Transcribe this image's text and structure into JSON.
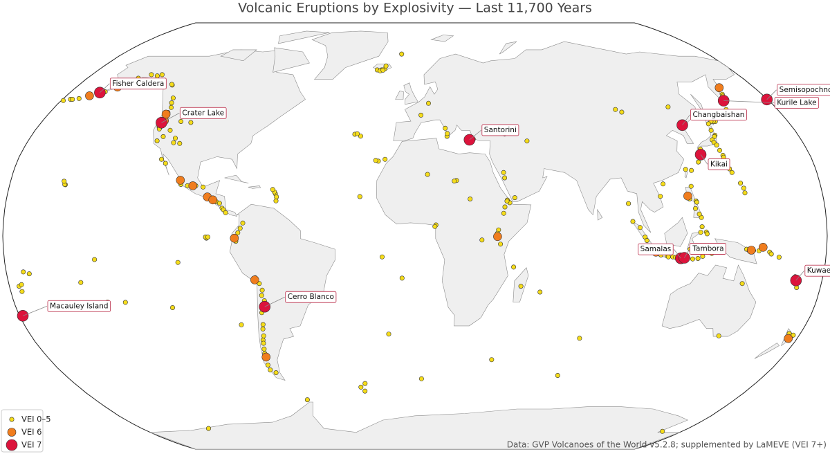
{
  "title": "Volcanic Eruptions by Explosivity — Last 11,700 Years",
  "source": "Data: GVP Volcanoes of the World v5.2.8; supplemented by LaMEVE (VEI 7+)",
  "map": {
    "series": [
      {
        "name": "VEI 0–5",
        "color": "#f5dc1a",
        "points": [
          [
            -176,
            52
          ],
          [
            -172,
            52.3
          ],
          [
            -168,
            53
          ],
          [
            -165,
            54.2
          ],
          [
            -162,
            55
          ],
          [
            -158,
            56.5
          ],
          [
            -155,
            58
          ],
          [
            -153,
            59.4
          ],
          [
            -152,
            60.5
          ],
          [
            178,
            51.8
          ],
          [
            -179,
            51.5
          ],
          [
            -175,
            52
          ],
          [
            -121.7,
            48.8
          ],
          [
            -121.8,
            46.85
          ],
          [
            -121.7,
            45.4
          ],
          [
            -121.8,
            44.1
          ],
          [
            -121.5,
            41.4
          ],
          [
            -122.2,
            41.4
          ],
          [
            -121.5,
            40.5
          ],
          [
            -147,
            62
          ],
          [
            -143,
            61.5
          ],
          [
            -141,
            62
          ],
          [
            -113,
            43.4
          ],
          [
            -116,
            40
          ],
          [
            -112,
            37
          ],
          [
            -118,
            37.6
          ],
          [
            -109,
            35
          ],
          [
            -112,
            35.3
          ],
          [
            -120,
            36
          ],
          [
            -108,
            43
          ],
          [
            -130,
            57.7
          ],
          [
            -123,
            50.6
          ],
          [
            -124,
            52.5
          ],
          [
            -130.6,
            58
          ],
          [
            -104,
            19.5
          ],
          [
            -101,
            19
          ],
          [
            -97.3,
            19
          ],
          [
            -94,
            18.5
          ],
          [
            -92,
            15.4
          ],
          [
            -91,
            14.5
          ],
          [
            -90,
            14
          ],
          [
            -88.5,
            13.5
          ],
          [
            -87.5,
            13
          ],
          [
            -86,
            12.4
          ],
          [
            -84.7,
            10.5
          ],
          [
            -84,
            9.9
          ],
          [
            -83,
            8.8
          ],
          [
            -112.7,
            27.5
          ],
          [
            -115,
            29
          ],
          [
            -61.7,
            16
          ],
          [
            -61.2,
            13.3
          ],
          [
            -62.2,
            16.7
          ],
          [
            -61.1,
            14.8
          ],
          [
            -63,
            17.6
          ],
          [
            -77.4,
            1.2
          ],
          [
            -78.4,
            -0.2
          ],
          [
            -78.4,
            -1.4
          ],
          [
            -78.3,
            -2
          ],
          [
            -75.3,
            4.9
          ],
          [
            -76.4,
            2.9
          ],
          [
            -71.4,
            -16.3
          ],
          [
            -70.6,
            -15.8
          ],
          [
            -69,
            -18
          ],
          [
            -68,
            -20.5
          ],
          [
            -68.5,
            -22.5
          ],
          [
            -67.5,
            -24.5
          ],
          [
            -68.5,
            -27
          ],
          [
            -69.5,
            -29
          ],
          [
            -70,
            -33.5
          ],
          [
            -70.5,
            -35.2
          ],
          [
            -71,
            -37.8
          ],
          [
            -71.8,
            -39.4
          ],
          [
            -72,
            -40.6
          ],
          [
            -72.6,
            -42.8
          ],
          [
            -73,
            -44.5
          ],
          [
            -73.5,
            -49
          ],
          [
            -73.3,
            -50.9
          ],
          [
            -71,
            -52
          ],
          [
            -91.1,
            -0.8
          ],
          [
            -91.5,
            -0.4
          ],
          [
            -90.5,
            -0.4
          ],
          [
            -155.3,
            19.4
          ],
          [
            -155.6,
            19.5
          ],
          [
            -156.2,
            20.7
          ],
          [
            -138,
            -25
          ],
          [
            -148,
            -17.6
          ],
          [
            -140.5,
            -8.9
          ],
          [
            -130,
            -25.1
          ],
          [
            -109.4,
            -27.1
          ],
          [
            -80,
            -33.6
          ],
          [
            -104,
            -10
          ],
          [
            -170,
            -14.3
          ],
          [
            -172.5,
            -13.6
          ],
          [
            -175,
            -21
          ],
          [
            -175.7,
            -19
          ],
          [
            -174.5,
            -18.4
          ],
          [
            -178,
            -29.3
          ],
          [
            -12.3,
            -37.1
          ],
          [
            -14.4,
            -7.9
          ],
          [
            -5.7,
            -15.95
          ],
          [
            -26.4,
            -56.3
          ],
          [
            -27.2,
            -59.4
          ],
          [
            -29,
            -57.8
          ],
          [
            -60.6,
            -63
          ],
          [
            -19,
            64
          ],
          [
            -17.3,
            64.4
          ],
          [
            -21.5,
            64
          ],
          [
            -16.8,
            65.7
          ],
          [
            -19.7,
            63.6
          ],
          [
            -18.2,
            63.9
          ],
          [
            -8.2,
            71
          ],
          [
            -25.5,
            37.8
          ],
          [
            -28.3,
            38.5
          ],
          [
            -27.2,
            38.7
          ],
          [
            -16.6,
            28.3
          ],
          [
            -17.8,
            28.6
          ],
          [
            -13.6,
            29
          ],
          [
            -24.3,
            14.9
          ],
          [
            15,
            37.7
          ],
          [
            14.4,
            40.8
          ],
          [
            15.2,
            38.8
          ],
          [
            27.2,
            36.6
          ],
          [
            2.9,
            45.8
          ],
          [
            6.8,
            50.4
          ],
          [
            44.3,
            39.7
          ],
          [
            42.2,
            38.6
          ],
          [
            52.1,
            35.95
          ],
          [
            40,
            22
          ],
          [
            39.7,
            24
          ],
          [
            44,
            14.5
          ],
          [
            40.7,
            13.6
          ],
          [
            41.7,
            12.6
          ],
          [
            40.5,
            13.2
          ],
          [
            39.5,
            11
          ],
          [
            38.9,
            8.6
          ],
          [
            36.5,
            2.3
          ],
          [
            36,
            1
          ],
          [
            18.5,
            21
          ],
          [
            17.5,
            20.8
          ],
          [
            9.17,
            4.2
          ],
          [
            8.7,
            3.6
          ],
          [
            29.25,
            -1.52
          ],
          [
            37.35,
            -3.07
          ],
          [
            43.35,
            -11.75
          ],
          [
            47,
            -19
          ],
          [
            55.7,
            -21.2
          ],
          [
            5.6,
            23.3
          ],
          [
            24.3,
            14
          ],
          [
            160.6,
            56.1
          ],
          [
            159.4,
            54
          ],
          [
            158.8,
            53.25
          ],
          [
            158,
            52.5
          ],
          [
            160,
            55.8
          ],
          [
            154.5,
            48
          ],
          [
            151.9,
            46
          ],
          [
            148.8,
            45.4
          ],
          [
            145,
            43.4
          ],
          [
            144,
            43.4
          ],
          [
            142.9,
            43.4
          ],
          [
            141,
            42.5
          ],
          [
            140.3,
            40
          ],
          [
            140.9,
            38.1
          ],
          [
            140.3,
            37.6
          ],
          [
            138.5,
            36.4
          ],
          [
            138.7,
            35.4
          ],
          [
            139.4,
            34.4
          ],
          [
            131.1,
            32.9
          ],
          [
            130.7,
            31.6
          ],
          [
            139.8,
            32.4
          ],
          [
            140.3,
            30.5
          ],
          [
            140.3,
            29.8
          ],
          [
            141.3,
            25.4
          ],
          [
            142,
            24
          ],
          [
            145.7,
            18.1
          ],
          [
            145.8,
            16.3
          ],
          [
            144.7,
            20
          ],
          [
            129.5,
            29.6
          ],
          [
            128.2,
            28
          ],
          [
            124,
            24.8
          ],
          [
            121.5,
            25.2
          ],
          [
            123.7,
            13.25
          ],
          [
            124,
            12.8
          ],
          [
            123.1,
            10.4
          ],
          [
            121,
            14
          ],
          [
            122.5,
            18.8
          ],
          [
            125.4,
            7
          ],
          [
            124.6,
            8.3
          ],
          [
            95.3,
            5.5
          ],
          [
            98.4,
            3.2
          ],
          [
            100.5,
            -0.4
          ],
          [
            101.3,
            -1.7
          ],
          [
            103.6,
            -4
          ],
          [
            104.9,
            -5.4
          ],
          [
            107.7,
            -7.2
          ],
          [
            110.4,
            -7.5
          ],
          [
            111,
            -7.9
          ],
          [
            112.9,
            -7.9
          ],
          [
            114.2,
            -8.1
          ],
          [
            115.5,
            -8.3
          ],
          [
            119.5,
            -8.3
          ],
          [
            121.7,
            -8.7
          ],
          [
            124,
            -8.5
          ],
          [
            126,
            -7.7
          ],
          [
            129.9,
            -6.6
          ],
          [
            127.3,
            1.5
          ],
          [
            127.6,
            0.8
          ],
          [
            125.5,
            3.5
          ],
          [
            124.8,
            1.4
          ],
          [
            120.3,
            -5
          ],
          [
            129.8,
            -4.5
          ],
          [
            145,
            -5
          ],
          [
            146.2,
            -5.6
          ],
          [
            148.1,
            -5.5
          ],
          [
            150.5,
            -5.6
          ],
          [
            155.2,
            -6.1
          ],
          [
            156,
            -6.8
          ],
          [
            159.5,
            -8
          ],
          [
            167.8,
            -15.4
          ],
          [
            168.3,
            -16.3
          ],
          [
            169.5,
            -19.5
          ],
          [
            175.6,
            -39.3
          ],
          [
            176.5,
            -38.1
          ],
          [
            177.2,
            -37.5
          ],
          [
            174.8,
            -36.9
          ],
          [
            126.5,
            49
          ],
          [
            110.2,
            19.7
          ],
          [
            99.5,
            48
          ],
          [
            102,
            47
          ],
          [
            108.2,
            15
          ],
          [
            93.86,
            12.28
          ],
          [
            142.5,
            -37.8
          ],
          [
            145,
            -18
          ],
          [
            166.9,
            -77.5
          ],
          [
            -136,
            -76
          ],
          [
            73.5,
            -53.1
          ],
          [
            37.8,
            -46.9
          ],
          [
            3.4,
            -54.4
          ],
          [
            77.5,
            -38.7
          ]
        ]
      },
      {
        "name": "VEI 6",
        "color": "#f07d1e",
        "points": [
          [
            -158.2,
            56.9
          ],
          [
            -168.1,
            53.4
          ],
          [
            -121.2,
            43.7
          ],
          [
            120.35,
            15.13
          ],
          [
            105.4,
            -6.1
          ],
          [
            -70.85,
            -16.6
          ],
          [
            -78.9,
            -0.85
          ],
          [
            -91.55,
            14.76
          ],
          [
            -89.05,
            13.67
          ],
          [
            -155.2,
            58.3
          ],
          [
            157.5,
            51.8
          ],
          [
            147.1,
            -5.36
          ],
          [
            152.2,
            -4.27
          ],
          [
            -72.96,
            -45.9
          ],
          [
            161.4,
            56.65
          ],
          [
            -104.5,
            21.1
          ],
          [
            175.9,
            -38.8
          ],
          [
            -122.2,
            46.2
          ],
          [
            -98.6,
            19
          ],
          [
            36.07,
            -0.2
          ]
        ]
      },
      {
        "name": "VEI 7",
        "color": "#dc143c",
        "points": [
          {
            "label": "Fisher Caldera",
            "lon": -164.35,
            "lat": 54.65
          },
          {
            "label": "Crater Lake",
            "lon": -122.1,
            "lat": 42.9
          },
          {
            "label": "Semisopochnoi",
            "lon": 179.6,
            "lat": 51.9
          },
          {
            "label": "Kurile Lake",
            "lon": 157.0,
            "lat": 51.45
          },
          {
            "label": "Changbaishan",
            "lon": 128.05,
            "lat": 41.98
          },
          {
            "label": "Santorini",
            "lon": 25.4,
            "lat": 36.4
          },
          {
            "label": "Kikai",
            "lon": 130.3,
            "lat": 30.8
          },
          {
            "label": "Samalas",
            "lon": 116.47,
            "lat": -8.42
          },
          {
            "label": "Tambora",
            "lon": 118.0,
            "lat": -8.25
          },
          {
            "label": "Kuwae",
            "lon": 168.5,
            "lat": -16.8
          },
          {
            "label": "Cerro Blanco",
            "lon": -67.77,
            "lat": -26.77
          },
          {
            "label": "Macauley Island",
            "lon": -178.5,
            "lat": -30.2
          }
        ]
      }
    ]
  }
}
